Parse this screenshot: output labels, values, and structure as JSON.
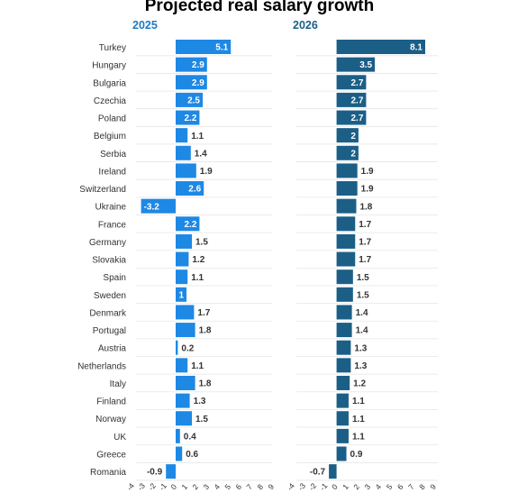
{
  "title": "Projected real salary growth",
  "chart_data": [
    {
      "type": "bar",
      "orientation": "horizontal",
      "title": "2025",
      "categories": [
        "Turkey",
        "Hungary",
        "Bulgaria",
        "Czechia",
        "Poland",
        "Belgium",
        "Serbia",
        "Ireland",
        "Switzerland",
        "Ukraine",
        "France",
        "Germany",
        "Slovakia",
        "Spain",
        "Sweden",
        "Denmark",
        "Portugal",
        "Austria",
        "Netherlands",
        "Italy",
        "Finland",
        "Norway",
        "UK",
        "Greece",
        "Romania"
      ],
      "values": [
        5.1,
        2.9,
        2.9,
        2.5,
        2.2,
        1.1,
        1.4,
        1.9,
        2.6,
        -3.2,
        2.2,
        1.5,
        1.2,
        1.1,
        1,
        1.7,
        1.8,
        0.2,
        1.1,
        1.8,
        1.3,
        1.5,
        0.4,
        0.6,
        -0.9
      ],
      "xlim": [
        -4,
        9
      ],
      "ticks": [
        "-4",
        "-3",
        "-2",
        "-1",
        "0",
        "1",
        "2",
        "3",
        "4",
        "5",
        "6",
        "7",
        "8",
        "9"
      ],
      "color": "#1e88e5"
    },
    {
      "type": "bar",
      "orientation": "horizontal",
      "title": "2026",
      "categories": [
        "Turkey",
        "Hungary",
        "Bulgaria",
        "Czechia",
        "Poland",
        "Belgium",
        "Serbia",
        "Ireland",
        "Switzerland",
        "Ukraine",
        "France",
        "Germany",
        "Slovakia",
        "Spain",
        "Sweden",
        "Denmark",
        "Portugal",
        "Austria",
        "Netherlands",
        "Italy",
        "Finland",
        "Norway",
        "UK",
        "Greece",
        "Romania"
      ],
      "values": [
        8.1,
        3.5,
        2.7,
        2.7,
        2.7,
        2,
        2,
        1.9,
        1.9,
        1.8,
        1.7,
        1.7,
        1.7,
        1.5,
        1.5,
        1.4,
        1.4,
        1.3,
        1.3,
        1.2,
        1.1,
        1.1,
        1.1,
        0.9,
        -0.7
      ],
      "xlim": [
        -4,
        9
      ],
      "ticks": [
        "-4",
        "-3",
        "-2",
        "-1",
        "0",
        "1",
        "2",
        "3",
        "4",
        "5",
        "6",
        "7",
        "8",
        "9"
      ],
      "color": "#1b5f87"
    }
  ],
  "colors": {
    "title": "#1f2d3a",
    "panel_title_2025": "#1e7bc4",
    "panel_title_2026": "#1b5f87",
    "label": "#333333",
    "grid": "#e6e6e6"
  }
}
